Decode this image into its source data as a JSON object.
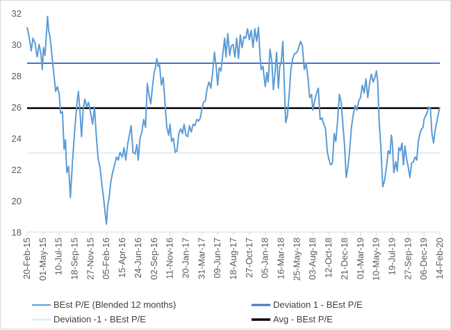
{
  "chart_data": {
    "type": "line",
    "ylim": [
      18,
      32
    ],
    "y_ticks": [
      18,
      20,
      22,
      24,
      26,
      28,
      30,
      32
    ],
    "grid": false,
    "x_tick_labels": [
      "20-Feb-15",
      "01-May-15",
      "10-Jul-15",
      "18-Sep-15",
      "27-Nov-15",
      "05-Feb-16",
      "15-Apr-16",
      "24-Jun-16",
      "02-Sep-16",
      "11-Nov-16",
      "20-Jan-17",
      "31-Mar-17",
      "09-Jun-17",
      "18-Aug-17",
      "27-Oct-17",
      "05-Jan-18",
      "16-Mar-18",
      "25-May-18",
      "03-Aug-18",
      "12-Oct-18",
      "21-Dec-18",
      "01-Mar-19",
      "10-May-19",
      "19-Jul-19",
      "27-Sep-19",
      "06-Dec-19",
      "14-Feb-20"
    ],
    "x_range": [
      "2015-02-20",
      "2020-02-14"
    ],
    "legend_position": "bottom",
    "series": [
      {
        "name": "BEst P/E (Blended 12 months)",
        "color": "#5b9bd5",
        "points": [
          [
            "2015-02-20",
            31.1
          ],
          [
            "2015-03-01",
            30.5
          ],
          [
            "2015-03-10",
            29.6
          ],
          [
            "2015-03-18",
            30.4
          ],
          [
            "2015-03-27",
            30.1
          ],
          [
            "2015-04-05",
            29.2
          ],
          [
            "2015-04-14",
            30.0
          ],
          [
            "2015-04-22",
            29.4
          ],
          [
            "2015-04-28",
            28.4
          ],
          [
            "2015-05-03",
            29.8
          ],
          [
            "2015-05-10",
            29.3
          ],
          [
            "2015-05-16",
            30.6
          ],
          [
            "2015-05-21",
            31.8
          ],
          [
            "2015-05-26",
            30.9
          ],
          [
            "2015-06-02",
            30.4
          ],
          [
            "2015-06-10",
            29.2
          ],
          [
            "2015-06-18",
            28.1
          ],
          [
            "2015-06-26",
            27.0
          ],
          [
            "2015-07-04",
            27.3
          ],
          [
            "2015-07-12",
            26.8
          ],
          [
            "2015-07-18",
            25.6
          ],
          [
            "2015-07-26",
            25.7
          ],
          [
            "2015-08-02",
            23.3
          ],
          [
            "2015-08-08",
            23.9
          ],
          [
            "2015-08-14",
            21.8
          ],
          [
            "2015-08-22",
            22.2
          ],
          [
            "2015-08-30",
            20.2
          ],
          [
            "2015-09-08",
            22.5
          ],
          [
            "2015-09-18",
            24.5
          ],
          [
            "2015-09-28",
            26.3
          ],
          [
            "2015-10-04",
            27.0
          ],
          [
            "2015-10-12",
            25.5
          ],
          [
            "2015-10-18",
            24.1
          ],
          [
            "2015-10-25",
            25.8
          ],
          [
            "2015-11-02",
            26.5
          ],
          [
            "2015-11-10",
            26.0
          ],
          [
            "2015-11-18",
            26.3
          ],
          [
            "2015-11-27",
            25.6
          ],
          [
            "2015-12-06",
            24.9
          ],
          [
            "2015-12-14",
            26.0
          ],
          [
            "2015-12-22",
            24.2
          ],
          [
            "2015-12-30",
            22.7
          ],
          [
            "2016-01-08",
            22.1
          ],
          [
            "2016-01-16",
            21.0
          ],
          [
            "2016-01-24",
            20.1
          ],
          [
            "2016-01-30",
            19.2
          ],
          [
            "2016-02-05",
            18.5
          ],
          [
            "2016-02-10",
            19.7
          ],
          [
            "2016-02-16",
            20.1
          ],
          [
            "2016-02-24",
            21.2
          ],
          [
            "2016-03-03",
            21.8
          ],
          [
            "2016-03-12",
            22.3
          ],
          [
            "2016-03-20",
            22.8
          ],
          [
            "2016-03-28",
            22.6
          ],
          [
            "2016-04-05",
            23.1
          ],
          [
            "2016-04-15",
            22.8
          ],
          [
            "2016-04-22",
            23.4
          ],
          [
            "2016-04-30",
            22.6
          ],
          [
            "2016-05-08",
            23.6
          ],
          [
            "2016-05-16",
            24.2
          ],
          [
            "2016-05-24",
            24.8
          ],
          [
            "2016-06-01",
            23.1
          ],
          [
            "2016-06-10",
            23.0
          ],
          [
            "2016-06-18",
            23.6
          ],
          [
            "2016-06-24",
            22.6
          ],
          [
            "2016-07-02",
            24.0
          ],
          [
            "2016-07-10",
            24.4
          ],
          [
            "2016-07-18",
            25.2
          ],
          [
            "2016-07-26",
            24.7
          ],
          [
            "2016-08-03",
            27.5
          ],
          [
            "2016-08-10",
            26.8
          ],
          [
            "2016-08-18",
            26.2
          ],
          [
            "2016-08-26",
            27.3
          ],
          [
            "2016-09-02",
            28.2
          ],
          [
            "2016-09-08",
            28.5
          ],
          [
            "2016-09-14",
            29.1
          ],
          [
            "2016-09-20",
            28.6
          ],
          [
            "2016-09-26",
            28.7
          ],
          [
            "2016-10-04",
            27.4
          ],
          [
            "2016-10-12",
            27.9
          ],
          [
            "2016-10-20",
            26.3
          ],
          [
            "2016-10-28",
            24.7
          ],
          [
            "2016-11-05",
            24.2
          ],
          [
            "2016-11-11",
            24.9
          ],
          [
            "2016-11-18",
            23.8
          ],
          [
            "2016-11-26",
            24.0
          ],
          [
            "2016-12-04",
            23.1
          ],
          [
            "2016-12-12",
            23.2
          ],
          [
            "2016-12-20",
            24.3
          ],
          [
            "2016-12-28",
            24.6
          ],
          [
            "2017-01-05",
            24.3
          ],
          [
            "2017-01-12",
            24.9
          ],
          [
            "2017-01-20",
            24.2
          ],
          [
            "2017-01-28",
            24.1
          ],
          [
            "2017-02-05",
            24.8
          ],
          [
            "2017-02-13",
            24.4
          ],
          [
            "2017-02-21",
            24.9
          ],
          [
            "2017-03-01",
            24.8
          ],
          [
            "2017-03-09",
            25.2
          ],
          [
            "2017-03-17",
            25.1
          ],
          [
            "2017-03-25",
            25.3
          ],
          [
            "2017-03-31",
            25.8
          ],
          [
            "2017-04-08",
            26.3
          ],
          [
            "2017-04-16",
            26.4
          ],
          [
            "2017-04-24",
            27.2
          ],
          [
            "2017-05-02",
            27.6
          ],
          [
            "2017-05-10",
            27.2
          ],
          [
            "2017-05-18",
            28.2
          ],
          [
            "2017-05-26",
            29.5
          ],
          [
            "2017-06-02",
            28.7
          ],
          [
            "2017-06-09",
            27.4
          ],
          [
            "2017-06-16",
            28.5
          ],
          [
            "2017-06-24",
            28.3
          ],
          [
            "2017-07-02",
            29.4
          ],
          [
            "2017-07-10",
            30.4
          ],
          [
            "2017-07-16",
            29.2
          ],
          [
            "2017-07-24",
            30.7
          ],
          [
            "2017-08-01",
            29.3
          ],
          [
            "2017-08-08",
            29.9
          ],
          [
            "2017-08-16",
            30.0
          ],
          [
            "2017-08-24",
            29.2
          ],
          [
            "2017-09-01",
            30.4
          ],
          [
            "2017-09-09",
            29.1
          ],
          [
            "2017-09-17",
            30.6
          ],
          [
            "2017-09-25",
            29.8
          ],
          [
            "2017-10-03",
            30.5
          ],
          [
            "2017-10-11",
            30.4
          ],
          [
            "2017-10-19",
            31.0
          ],
          [
            "2017-10-27",
            30.3
          ],
          [
            "2017-11-04",
            30.9
          ],
          [
            "2017-11-12",
            29.8
          ],
          [
            "2017-11-20",
            31.0
          ],
          [
            "2017-11-28",
            30.2
          ],
          [
            "2017-12-06",
            31.1
          ],
          [
            "2017-12-12",
            29.5
          ],
          [
            "2017-12-18",
            28.4
          ],
          [
            "2017-12-26",
            28.6
          ],
          [
            "2018-01-05",
            27.3
          ],
          [
            "2018-01-12",
            28.2
          ],
          [
            "2018-01-18",
            27.6
          ],
          [
            "2018-01-26",
            29.7
          ],
          [
            "2018-02-03",
            28.9
          ],
          [
            "2018-02-10",
            27.1
          ],
          [
            "2018-02-16",
            28.0
          ],
          [
            "2018-02-24",
            29.5
          ],
          [
            "2018-03-04",
            27.2
          ],
          [
            "2018-03-10",
            28.6
          ],
          [
            "2018-03-16",
            28.8
          ],
          [
            "2018-03-24",
            30.2
          ],
          [
            "2018-03-30",
            27.5
          ],
          [
            "2018-04-05",
            25.0
          ],
          [
            "2018-04-12",
            25.4
          ],
          [
            "2018-04-20",
            26.7
          ],
          [
            "2018-04-28",
            28.4
          ],
          [
            "2018-05-06",
            29.1
          ],
          [
            "2018-05-14",
            29.4
          ],
          [
            "2018-05-25",
            29.5
          ],
          [
            "2018-06-02",
            29.8
          ],
          [
            "2018-06-10",
            30.2
          ],
          [
            "2018-06-18",
            29.9
          ],
          [
            "2018-06-26",
            28.4
          ],
          [
            "2018-07-04",
            28.8
          ],
          [
            "2018-07-12",
            27.9
          ],
          [
            "2018-07-20",
            26.6
          ],
          [
            "2018-07-28",
            26.8
          ],
          [
            "2018-08-03",
            25.8
          ],
          [
            "2018-08-11",
            26.4
          ],
          [
            "2018-08-19",
            26.9
          ],
          [
            "2018-08-27",
            27.2
          ],
          [
            "2018-09-04",
            25.2
          ],
          [
            "2018-09-12",
            25.3
          ],
          [
            "2018-09-20",
            24.9
          ],
          [
            "2018-09-28",
            24.6
          ],
          [
            "2018-10-06",
            23.1
          ],
          [
            "2018-10-12",
            22.7
          ],
          [
            "2018-10-20",
            22.3
          ],
          [
            "2018-10-28",
            22.4
          ],
          [
            "2018-11-05",
            24.3
          ],
          [
            "2018-11-12",
            23.8
          ],
          [
            "2018-11-20",
            25.1
          ],
          [
            "2018-11-28",
            26.8
          ],
          [
            "2018-12-06",
            26.3
          ],
          [
            "2018-12-14",
            24.8
          ],
          [
            "2018-12-21",
            23.5
          ],
          [
            "2018-12-28",
            21.5
          ],
          [
            "2019-01-05",
            22.2
          ],
          [
            "2019-01-12",
            23.2
          ],
          [
            "2019-01-20",
            24.7
          ],
          [
            "2019-01-28",
            25.5
          ],
          [
            "2019-02-05",
            26.1
          ],
          [
            "2019-02-13",
            25.8
          ],
          [
            "2019-02-21",
            26.4
          ],
          [
            "2019-03-01",
            26.6
          ],
          [
            "2019-03-09",
            27.4
          ],
          [
            "2019-03-17",
            26.9
          ],
          [
            "2019-03-25",
            27.8
          ],
          [
            "2019-04-02",
            26.6
          ],
          [
            "2019-04-10",
            27.5
          ],
          [
            "2019-04-18",
            28.1
          ],
          [
            "2019-04-26",
            27.6
          ],
          [
            "2019-05-04",
            27.9
          ],
          [
            "2019-05-10",
            28.3
          ],
          [
            "2019-05-16",
            27.6
          ],
          [
            "2019-05-22",
            25.2
          ],
          [
            "2019-05-30",
            23.4
          ],
          [
            "2019-06-07",
            20.9
          ],
          [
            "2019-06-15",
            21.3
          ],
          [
            "2019-06-23",
            22.1
          ],
          [
            "2019-07-01",
            23.2
          ],
          [
            "2019-07-09",
            23.0
          ],
          [
            "2019-07-15",
            24.2
          ],
          [
            "2019-07-19",
            23.8
          ],
          [
            "2019-07-26",
            21.8
          ],
          [
            "2019-08-03",
            22.5
          ],
          [
            "2019-08-10",
            21.9
          ],
          [
            "2019-08-17",
            23.4
          ],
          [
            "2019-08-24",
            23.2
          ],
          [
            "2019-08-31",
            23.7
          ],
          [
            "2019-09-06",
            22.3
          ],
          [
            "2019-09-13",
            23.5
          ],
          [
            "2019-09-20",
            22.7
          ],
          [
            "2019-09-27",
            22.2
          ],
          [
            "2019-10-05",
            21.5
          ],
          [
            "2019-10-12",
            22.4
          ],
          [
            "2019-10-20",
            22.5
          ],
          [
            "2019-10-28",
            22.8
          ],
          [
            "2019-11-04",
            22.6
          ],
          [
            "2019-11-11",
            23.8
          ],
          [
            "2019-11-18",
            24.3
          ],
          [
            "2019-11-25",
            24.6
          ],
          [
            "2019-12-02",
            24.7
          ],
          [
            "2019-12-06",
            25.2
          ],
          [
            "2019-12-12",
            25.4
          ],
          [
            "2019-12-19",
            25.6
          ],
          [
            "2019-12-26",
            26.0
          ],
          [
            "2020-01-03",
            25.9
          ],
          [
            "2020-01-10",
            24.3
          ],
          [
            "2020-01-17",
            23.7
          ],
          [
            "2020-01-24",
            24.5
          ],
          [
            "2020-01-31",
            25.0
          ],
          [
            "2020-02-06",
            25.5
          ],
          [
            "2020-02-14",
            26.0
          ]
        ]
      },
      {
        "name": "Deviation 1 - BEst P/E",
        "color": "#4472c4",
        "value": 28.8
      },
      {
        "name": "Deviation  -1 - BEst P/E",
        "color": "#deebf7",
        "value": 23.05
      },
      {
        "name": "Avg - BEst P/E",
        "color": "#000000",
        "value": 25.93
      }
    ]
  }
}
